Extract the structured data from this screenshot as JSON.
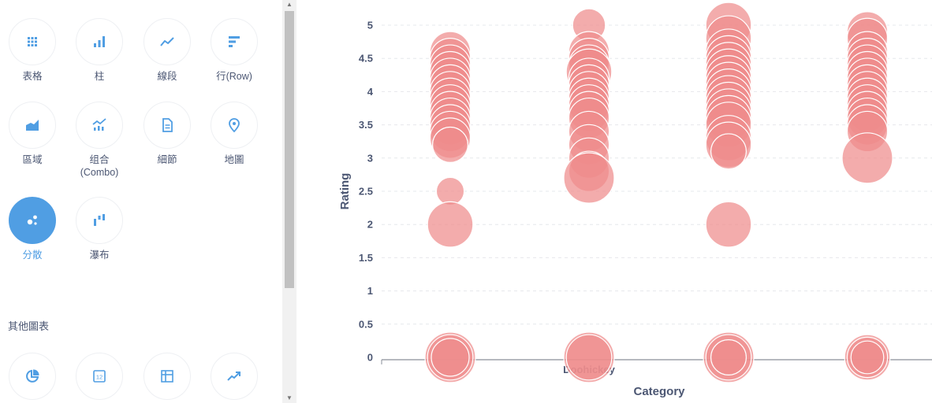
{
  "sidebar": {
    "viz_types": [
      {
        "label": "表格",
        "icon": "table-grid-icon"
      },
      {
        "label": "柱",
        "icon": "bar-chart-icon"
      },
      {
        "label": "線段",
        "icon": "line-chart-icon"
      },
      {
        "label": "行(Row)",
        "icon": "row-chart-icon"
      },
      {
        "label": "區域",
        "icon": "area-chart-icon"
      },
      {
        "label": "组合\n(Combo)",
        "icon": "combo-chart-icon"
      },
      {
        "label": "細節",
        "icon": "detail-document-icon"
      },
      {
        "label": "地圖",
        "icon": "map-pin-icon"
      },
      {
        "label": "分散",
        "icon": "scatter-icon",
        "active": true
      },
      {
        "label": "瀑布",
        "icon": "waterfall-icon"
      }
    ],
    "other_section_title": "其他圖表",
    "other_viz_icons": [
      "pie-chart-icon",
      "number-icon",
      "pivot-table-icon",
      "trend-icon"
    ]
  },
  "colors": {
    "accent": "#509ee3",
    "bubble_fill": "#ef8c8c",
    "axis_text": "#4c5773"
  },
  "chart_data": {
    "type": "scatter",
    "xlabel": "Category",
    "ylabel": "Rating",
    "x_tick_label_partial": "Doohickey",
    "categories": [
      "",
      "",
      "",
      ""
    ],
    "ylim": [
      0,
      5
    ],
    "yticks": [
      "0",
      "0.5",
      "1",
      "1.5",
      "2",
      "2.5",
      "3",
      "3.5",
      "4",
      "4.5",
      "5"
    ],
    "grid": true,
    "series": [
      {
        "category_index": 0,
        "points": [
          {
            "y": 4.6,
            "size": 0.8
          },
          {
            "y": 4.5,
            "size": 0.8
          },
          {
            "y": 4.4,
            "size": 0.8
          },
          {
            "y": 4.3,
            "size": 0.8
          },
          {
            "y": 4.2,
            "size": 0.8
          },
          {
            "y": 4.1,
            "size": 0.8
          },
          {
            "y": 4.0,
            "size": 0.8
          },
          {
            "y": 3.9,
            "size": 0.8
          },
          {
            "y": 3.8,
            "size": 0.8
          },
          {
            "y": 3.7,
            "size": 0.8
          },
          {
            "y": 3.6,
            "size": 0.8
          },
          {
            "y": 3.5,
            "size": 0.8
          },
          {
            "y": 3.4,
            "size": 0.8
          },
          {
            "y": 3.3,
            "size": 0.8
          },
          {
            "y": 3.2,
            "size": 0.7
          },
          {
            "y": 2.5,
            "size": 0.55
          },
          {
            "y": 2.0,
            "size": 0.9
          },
          {
            "y": 0,
            "size": 1.0
          },
          {
            "y": 0,
            "size": 0.9
          },
          {
            "y": 0,
            "size": 0.75
          }
        ]
      },
      {
        "category_index": 1,
        "points": [
          {
            "y": 5.0,
            "size": 0.65
          },
          {
            "y": 4.6,
            "size": 0.8
          },
          {
            "y": 4.5,
            "size": 0.8
          },
          {
            "y": 4.4,
            "size": 0.8
          },
          {
            "y": 4.3,
            "size": 0.9
          },
          {
            "y": 4.2,
            "size": 0.8
          },
          {
            "y": 4.1,
            "size": 0.8
          },
          {
            "y": 4.0,
            "size": 0.8
          },
          {
            "y": 3.9,
            "size": 0.8
          },
          {
            "y": 3.8,
            "size": 0.8
          },
          {
            "y": 3.7,
            "size": 0.8
          },
          {
            "y": 3.6,
            "size": 0.8
          },
          {
            "y": 3.4,
            "size": 0.8
          },
          {
            "y": 3.2,
            "size": 0.8
          },
          {
            "y": 3.0,
            "size": 0.8
          },
          {
            "y": 2.8,
            "size": 0.8
          },
          {
            "y": 2.7,
            "size": 1.0
          },
          {
            "y": 0,
            "size": 1.0
          },
          {
            "y": 0,
            "size": 0.9
          }
        ]
      },
      {
        "category_index": 2,
        "points": [
          {
            "y": 5.0,
            "size": 0.9
          },
          {
            "y": 4.8,
            "size": 0.9
          },
          {
            "y": 4.6,
            "size": 0.9
          },
          {
            "y": 4.5,
            "size": 0.9
          },
          {
            "y": 4.4,
            "size": 0.9
          },
          {
            "y": 4.3,
            "size": 0.9
          },
          {
            "y": 4.2,
            "size": 0.9
          },
          {
            "y": 4.1,
            "size": 0.9
          },
          {
            "y": 4.0,
            "size": 0.9
          },
          {
            "y": 3.9,
            "size": 0.9
          },
          {
            "y": 3.8,
            "size": 0.9
          },
          {
            "y": 3.7,
            "size": 0.9
          },
          {
            "y": 3.6,
            "size": 0.9
          },
          {
            "y": 3.5,
            "size": 0.9
          },
          {
            "y": 3.3,
            "size": 0.9
          },
          {
            "y": 3.2,
            "size": 0.9
          },
          {
            "y": 3.1,
            "size": 0.7
          },
          {
            "y": 2.0,
            "size": 0.9
          },
          {
            "y": 0,
            "size": 1.0
          },
          {
            "y": 0,
            "size": 0.9
          },
          {
            "y": 0,
            "size": 0.7
          }
        ]
      },
      {
        "category_index": 3,
        "points": [
          {
            "y": 4.9,
            "size": 0.8
          },
          {
            "y": 4.8,
            "size": 0.8
          },
          {
            "y": 4.6,
            "size": 0.8
          },
          {
            "y": 4.5,
            "size": 0.8
          },
          {
            "y": 4.4,
            "size": 0.8
          },
          {
            "y": 4.3,
            "size": 0.8
          },
          {
            "y": 4.2,
            "size": 0.8
          },
          {
            "y": 4.1,
            "size": 0.8
          },
          {
            "y": 4.0,
            "size": 0.8
          },
          {
            "y": 3.9,
            "size": 0.8
          },
          {
            "y": 3.8,
            "size": 0.8
          },
          {
            "y": 3.7,
            "size": 0.8
          },
          {
            "y": 3.6,
            "size": 0.8
          },
          {
            "y": 3.5,
            "size": 0.8
          },
          {
            "y": 3.4,
            "size": 0.8
          },
          {
            "y": 3.0,
            "size": 1.0
          },
          {
            "y": 0,
            "size": 0.9
          },
          {
            "y": 0,
            "size": 0.8
          },
          {
            "y": 0,
            "size": 0.65
          }
        ]
      }
    ]
  }
}
